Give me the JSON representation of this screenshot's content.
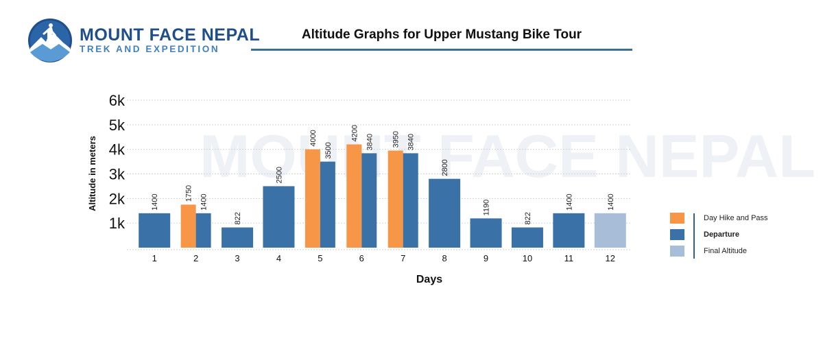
{
  "logo": {
    "name": "MOUNT FACE NEPAL",
    "tagline": "TREK AND EXPEDITION"
  },
  "chart_data": {
    "type": "bar",
    "title": "Altitude Graphs for Upper Mustang Bike Tour",
    "xlabel": "Days",
    "ylabel": "Altitude in meters",
    "ylim": [
      0,
      6000
    ],
    "yticks": [
      {
        "value": 1000,
        "label": "1k"
      },
      {
        "value": 2000,
        "label": "2k"
      },
      {
        "value": 3000,
        "label": "3k"
      },
      {
        "value": 4000,
        "label": "4k"
      },
      {
        "value": 5000,
        "label": "5k"
      },
      {
        "value": 6000,
        "label": "6k"
      }
    ],
    "grid": true,
    "watermark": "MOUNT FACE NEPAL",
    "categories": [
      "1",
      "2",
      "3",
      "4",
      "5",
      "6",
      "7",
      "8",
      "9",
      "10",
      "11",
      "12"
    ],
    "series": [
      {
        "name": "Day Hike and Pass",
        "color": "#f79646",
        "values": [
          null,
          1750,
          null,
          null,
          4000,
          4200,
          3950,
          null,
          null,
          null,
          null,
          null
        ]
      },
      {
        "name": "Departure",
        "color": "#3a72a8",
        "values": [
          1400,
          1400,
          822,
          2500,
          3500,
          3840,
          3840,
          2800,
          1190,
          822,
          1400,
          null
        ]
      },
      {
        "name": "Final  Altitude",
        "color": "#a8bdd7",
        "values": [
          null,
          null,
          null,
          null,
          null,
          null,
          null,
          null,
          null,
          null,
          null,
          1400
        ]
      }
    ],
    "legend_position": "right"
  }
}
